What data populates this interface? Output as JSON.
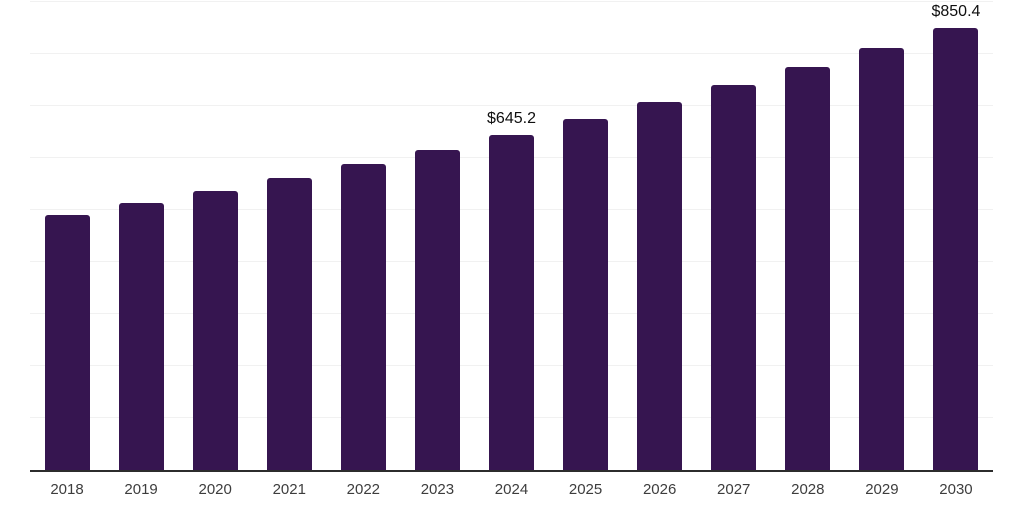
{
  "chart_data": {
    "type": "bar",
    "title": "",
    "xlabel": "",
    "ylabel": "",
    "categories": [
      "2018",
      "2019",
      "2020",
      "2021",
      "2022",
      "2023",
      "2024",
      "2025",
      "2026",
      "2027",
      "2028",
      "2029",
      "2030"
    ],
    "values": [
      489.7,
      512.7,
      536.9,
      562.1,
      588.6,
      616.3,
      645.2,
      675.6,
      707.4,
      740.7,
      775.6,
      812.1,
      850.4
    ],
    "data_labels": [
      {
        "category": "2024",
        "text": "$645.2"
      },
      {
        "category": "2030",
        "text": "$850.4"
      }
    ],
    "ylim": [
      0,
      900
    ],
    "grid_step": 100,
    "grid": true,
    "legend": false,
    "y_axis_labels_visible": false
  },
  "style": {
    "bar_color": "#361550",
    "axis_color": "#2c2c2c",
    "grid_color": "#f1f1f1",
    "tick_label_color": "#3d3d3d",
    "data_label_color": "#0f0f0f",
    "background": "#ffffff"
  }
}
